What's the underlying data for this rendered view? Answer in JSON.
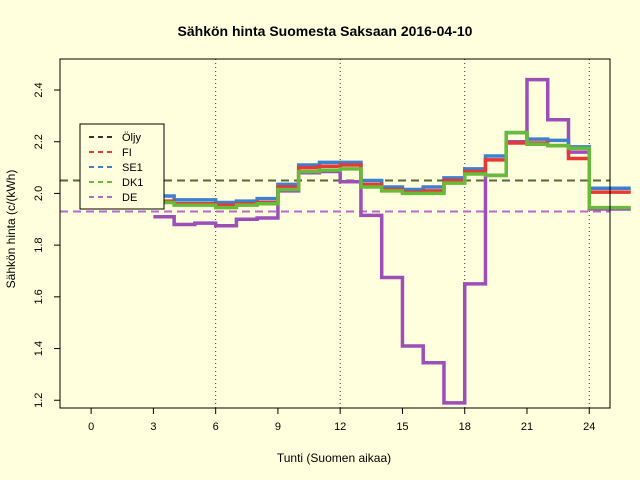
{
  "chart_data": {
    "type": "line",
    "step": true,
    "title": "Sähkön hinta Suomesta Saksaan 2016-04-10",
    "xlabel": "Tunti (Suomen aikaa)",
    "ylabel": "Sähkön hinta (c/(kWh)",
    "xlim": [
      -1.5,
      25
    ],
    "ylim": [
      1.17,
      2.52
    ],
    "x_ticks": [
      0,
      3,
      6,
      9,
      12,
      15,
      18,
      21,
      24
    ],
    "y_ticks": [
      1.2,
      1.4,
      1.6,
      1.8,
      2.0,
      2.2,
      2.4
    ],
    "y_tick_labels": [
      "1.2",
      "1.4",
      "1.6",
      "1.8",
      "2.0",
      "2.2",
      "2.4"
    ],
    "vlines": [
      6,
      12,
      18,
      24
    ],
    "hlines": [
      {
        "name": "Öljy",
        "value": 2.05,
        "color": "#556B2F"
      },
      {
        "name": "DE",
        "value": 1.93,
        "color": "#BA68C8"
      }
    ],
    "legend": {
      "position": "top-left",
      "entries": [
        {
          "label": "Öljy",
          "color": "#333333"
        },
        {
          "label": "FI",
          "color": "#E53935"
        },
        {
          "label": "SE1",
          "color": "#3F7FD0"
        },
        {
          "label": "DK1",
          "color": "#66BB3A"
        },
        {
          "label": "DE",
          "color": "#B06CC4"
        }
      ]
    },
    "series": [
      {
        "name": "DE",
        "color": "#9C4FB8",
        "x": [
          3,
          4,
          5,
          6,
          7,
          8,
          9,
          10,
          11,
          12,
          13,
          14,
          15,
          16,
          17,
          18,
          19,
          20,
          21,
          22,
          23,
          24,
          25
        ],
        "values": [
          1.91,
          1.88,
          1.885,
          1.875,
          1.9,
          1.905,
          2.01,
          2.08,
          2.085,
          2.045,
          1.915,
          1.675,
          1.41,
          1.345,
          1.19,
          1.65,
          2.07,
          2.2,
          2.44,
          2.285,
          2.16,
          1.94,
          1.94
        ]
      },
      {
        "name": "SE1",
        "color": "#3F7FD0",
        "x": [
          3,
          4,
          5,
          6,
          7,
          8,
          9,
          10,
          11,
          12,
          13,
          14,
          15,
          16,
          17,
          18,
          19,
          20,
          21,
          22,
          23,
          24,
          25
        ],
        "values": [
          1.99,
          1.975,
          1.975,
          1.965,
          1.97,
          1.98,
          2.035,
          2.11,
          2.12,
          2.12,
          2.05,
          2.025,
          2.015,
          2.025,
          2.06,
          2.095,
          2.145,
          2.235,
          2.21,
          2.205,
          2.18,
          2.02,
          2.02
        ]
      },
      {
        "name": "FI",
        "color": "#E53935",
        "x": [
          3,
          4,
          5,
          6,
          7,
          8,
          9,
          10,
          11,
          12,
          13,
          14,
          15,
          16,
          17,
          18,
          19,
          20,
          21,
          22,
          23,
          24,
          25
        ],
        "values": [
          1.97,
          1.96,
          1.96,
          1.955,
          1.96,
          1.965,
          2.025,
          2.1,
          2.105,
          2.11,
          2.035,
          2.015,
          2.005,
          2.01,
          2.05,
          2.085,
          2.13,
          2.195,
          2.195,
          2.185,
          2.135,
          2.005,
          2.005
        ]
      },
      {
        "name": "DK1",
        "color": "#66BB3A",
        "x": [
          3,
          4,
          5,
          6,
          7,
          8,
          9,
          10,
          11,
          12,
          13,
          14,
          15,
          16,
          17,
          18,
          19,
          20,
          21,
          22,
          23,
          24,
          25
        ],
        "values": [
          1.965,
          1.955,
          1.955,
          1.945,
          1.955,
          1.96,
          2.015,
          2.085,
          2.09,
          2.095,
          2.025,
          2.01,
          2.0,
          2.0,
          2.04,
          2.075,
          2.07,
          2.235,
          2.19,
          2.185,
          2.175,
          1.945,
          1.945
        ]
      }
    ]
  }
}
